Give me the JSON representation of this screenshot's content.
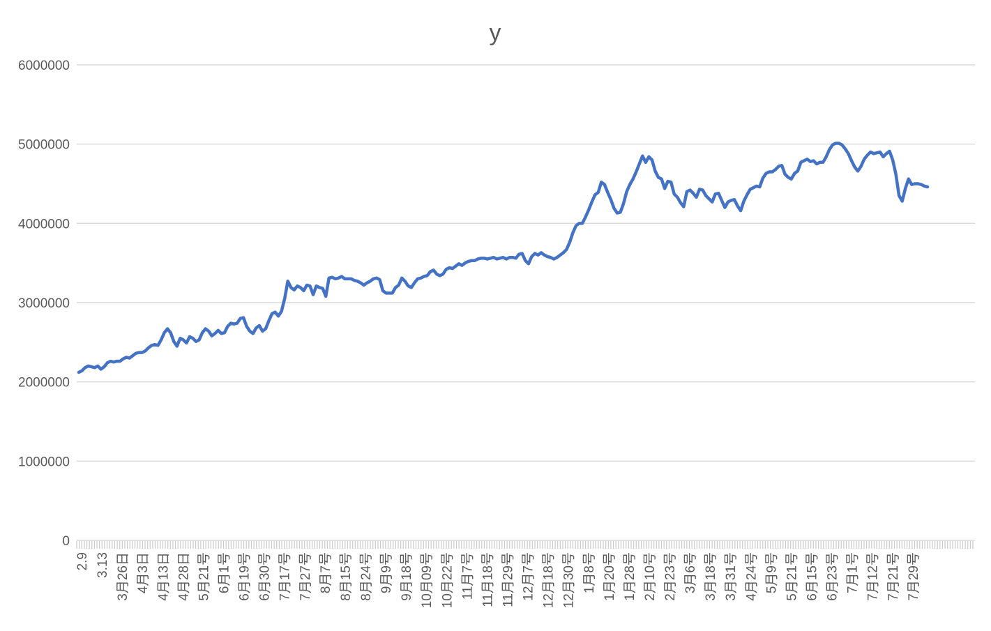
{
  "chart_data": {
    "type": "line",
    "title": "y",
    "legend": "none",
    "grid": true,
    "series_color": "#4472C4",
    "gridline_color": "#D9D9D9",
    "axis_tick_color": "#C9C9C9",
    "label_color": "#595959",
    "ylim": [
      0,
      6000000
    ],
    "y_ticks": [
      0,
      1000000,
      2000000,
      3000000,
      4000000,
      5000000,
      6000000
    ],
    "x_labels": [
      "2.9",
      "3.13",
      "3月26日",
      "4月3日",
      "4月13日",
      "4月28日",
      "5月21号",
      "6月1号",
      "6月19号",
      "6月30号",
      "7月17号",
      "7月27号",
      "8月7号",
      "8月15号",
      "8月24号",
      "9月9号",
      "9月18号",
      "10月09号",
      "10月22号",
      "11月7号",
      "11月18号",
      "11月29号",
      "12月7号",
      "12月18号",
      "12月30号",
      "1月8号",
      "1月20号",
      "1月28号",
      "2月10号",
      "2月23号",
      "3月6号",
      "3月18号",
      "3月31号",
      "4月24号",
      "5月9号",
      "5月21号",
      "6月15号",
      "6月23号",
      "7月1号",
      "7月12号",
      "7月21号",
      "7月29号"
    ],
    "values": [
      2120000,
      2140000,
      2180000,
      2200000,
      2190000,
      2180000,
      2200000,
      2160000,
      2190000,
      2240000,
      2260000,
      2250000,
      2260000,
      2260000,
      2290000,
      2310000,
      2300000,
      2330000,
      2360000,
      2370000,
      2370000,
      2390000,
      2430000,
      2460000,
      2470000,
      2460000,
      2530000,
      2620000,
      2670000,
      2620000,
      2510000,
      2450000,
      2550000,
      2530000,
      2490000,
      2570000,
      2550000,
      2510000,
      2530000,
      2620000,
      2670000,
      2640000,
      2580000,
      2610000,
      2650000,
      2610000,
      2620000,
      2700000,
      2740000,
      2730000,
      2740000,
      2800000,
      2810000,
      2700000,
      2640000,
      2610000,
      2680000,
      2710000,
      2640000,
      2670000,
      2770000,
      2860000,
      2880000,
      2830000,
      2890000,
      3050000,
      3270000,
      3190000,
      3160000,
      3210000,
      3190000,
      3150000,
      3220000,
      3210000,
      3100000,
      3210000,
      3190000,
      3180000,
      3080000,
      3310000,
      3320000,
      3300000,
      3310000,
      3330000,
      3300000,
      3300000,
      3300000,
      3280000,
      3270000,
      3250000,
      3220000,
      3250000,
      3270000,
      3300000,
      3310000,
      3290000,
      3150000,
      3120000,
      3120000,
      3120000,
      3190000,
      3220000,
      3310000,
      3270000,
      3210000,
      3190000,
      3250000,
      3300000,
      3310000,
      3330000,
      3340000,
      3390000,
      3410000,
      3360000,
      3340000,
      3360000,
      3420000,
      3440000,
      3430000,
      3460000,
      3490000,
      3470000,
      3500000,
      3520000,
      3530000,
      3530000,
      3550000,
      3560000,
      3560000,
      3550000,
      3560000,
      3570000,
      3550000,
      3560000,
      3570000,
      3550000,
      3570000,
      3570000,
      3560000,
      3610000,
      3620000,
      3530000,
      3490000,
      3580000,
      3620000,
      3600000,
      3630000,
      3600000,
      3580000,
      3570000,
      3550000,
      3570000,
      3600000,
      3630000,
      3670000,
      3760000,
      3880000,
      3970000,
      4000000,
      4000000,
      4080000,
      4170000,
      4270000,
      4360000,
      4390000,
      4520000,
      4490000,
      4390000,
      4300000,
      4190000,
      4130000,
      4140000,
      4250000,
      4400000,
      4490000,
      4560000,
      4650000,
      4750000,
      4850000,
      4770000,
      4840000,
      4800000,
      4660000,
      4580000,
      4560000,
      4440000,
      4530000,
      4520000,
      4370000,
      4330000,
      4260000,
      4210000,
      4400000,
      4420000,
      4380000,
      4330000,
      4430000,
      4420000,
      4350000,
      4310000,
      4270000,
      4370000,
      4380000,
      4290000,
      4200000,
      4270000,
      4290000,
      4300000,
      4220000,
      4160000,
      4280000,
      4360000,
      4430000,
      4450000,
      4470000,
      4460000,
      4570000,
      4630000,
      4650000,
      4650000,
      4680000,
      4720000,
      4730000,
      4620000,
      4580000,
      4560000,
      4630000,
      4660000,
      4770000,
      4790000,
      4810000,
      4780000,
      4790000,
      4750000,
      4770000,
      4770000,
      4840000,
      4930000,
      4990000,
      5010000,
      5010000,
      4990000,
      4940000,
      4880000,
      4790000,
      4710000,
      4660000,
      4720000,
      4810000,
      4860000,
      4900000,
      4880000,
      4890000,
      4900000,
      4840000,
      4880000,
      4910000,
      4800000,
      4620000,
      4350000,
      4280000,
      4440000,
      4560000,
      4490000,
      4500000,
      4500000,
      4490000,
      4470000,
      4460000
    ]
  }
}
